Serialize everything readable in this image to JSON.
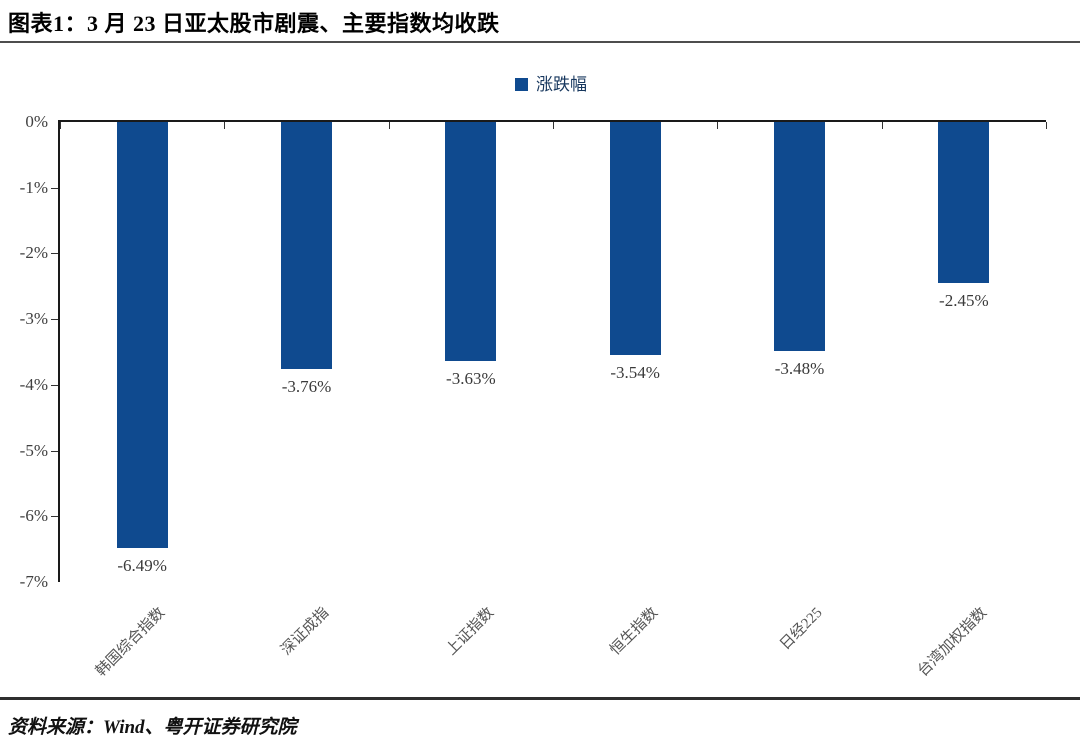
{
  "page": {
    "title": "图表1：3 月 23 日亚太股市剧震、主要指数均收跌",
    "source": "资料来源：Wind、粤开证券研究院"
  },
  "legend": {
    "label": "涨跌幅"
  },
  "chart_data": {
    "type": "bar",
    "title": "图表1：3 月 23 日亚太股市剧震、主要指数均收跌",
    "legend": [
      "涨跌幅"
    ],
    "legend_position": "top-center",
    "categories": [
      "韩国综合指数",
      "深证成指",
      "上证指数",
      "恒生指数",
      "日经225",
      "台湾加权指数"
    ],
    "values": [
      -6.49,
      -3.76,
      -3.63,
      -3.54,
      -3.48,
      -2.45
    ],
    "value_labels": [
      "-6.49%",
      "-3.76%",
      "-3.63%",
      "-3.54%",
      "-3.48%",
      "-2.45%"
    ],
    "xlabel": "",
    "ylabel": "",
    "ylim": [
      -7,
      0
    ],
    "yticks": [
      "0%",
      "-1%",
      "-2%",
      "-3%",
      "-4%",
      "-5%",
      "-6%",
      "-7%"
    ],
    "grid": false,
    "bar_color": "#0F4A8F",
    "legend_text_color": "#17375E",
    "source": "资料来源：Wind、粤开证券研究院"
  }
}
